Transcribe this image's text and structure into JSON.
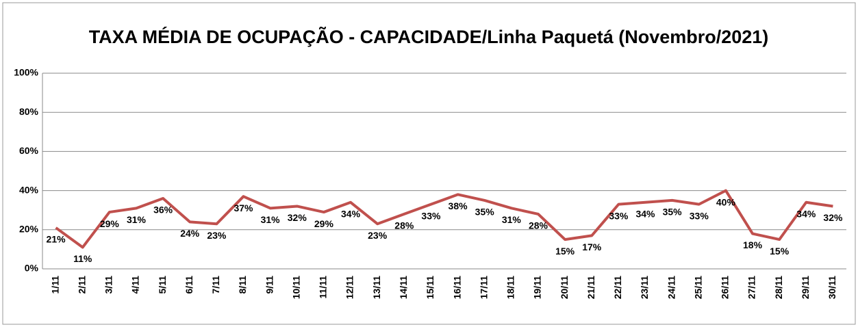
{
  "chart_data": {
    "type": "line",
    "title": "TAXA MÉDIA DE OCUPAÇÃO - CAPACIDADE/Linha Paquetá (Novembro/2021)",
    "categories": [
      "1/11",
      "2/11",
      "3/11",
      "4/11",
      "5/11",
      "6/11",
      "7/11",
      "8/11",
      "9/11",
      "10/11",
      "11/11",
      "12/11",
      "13/11",
      "14/11",
      "15/11",
      "16/11",
      "17/11",
      "18/11",
      "19/11",
      "20/11",
      "21/11",
      "22/11",
      "23/11",
      "24/11",
      "25/11",
      "26/11",
      "27/11",
      "28/11",
      "29/11",
      "30/11"
    ],
    "values": [
      21,
      11,
      29,
      31,
      36,
      24,
      23,
      37,
      31,
      32,
      29,
      34,
      23,
      28,
      33,
      38,
      35,
      31,
      28,
      15,
      17,
      33,
      34,
      35,
      33,
      40,
      18,
      15,
      34,
      32
    ],
    "value_labels": [
      "21%",
      "11%",
      "29%",
      "31%",
      "36%",
      "24%",
      "23%",
      "37%",
      "31%",
      "32%",
      "29%",
      "34%",
      "23%",
      "28%",
      "33%",
      "38%",
      "35%",
      "31%",
      "28%",
      "15%",
      "17%",
      "33%",
      "34%",
      "35%",
      "33%",
      "40%",
      "18%",
      "15%",
      "34%",
      "32%"
    ],
    "color": "#c0504d",
    "ylim": [
      0,
      100
    ],
    "yticks": [
      {
        "value": 0,
        "label": "0%"
      },
      {
        "value": 20,
        "label": "20%"
      },
      {
        "value": 40,
        "label": "40%"
      },
      {
        "value": 60,
        "label": "60%"
      },
      {
        "value": 80,
        "label": "80%"
      },
      {
        "value": 100,
        "label": "100%"
      }
    ],
    "grid": true
  }
}
